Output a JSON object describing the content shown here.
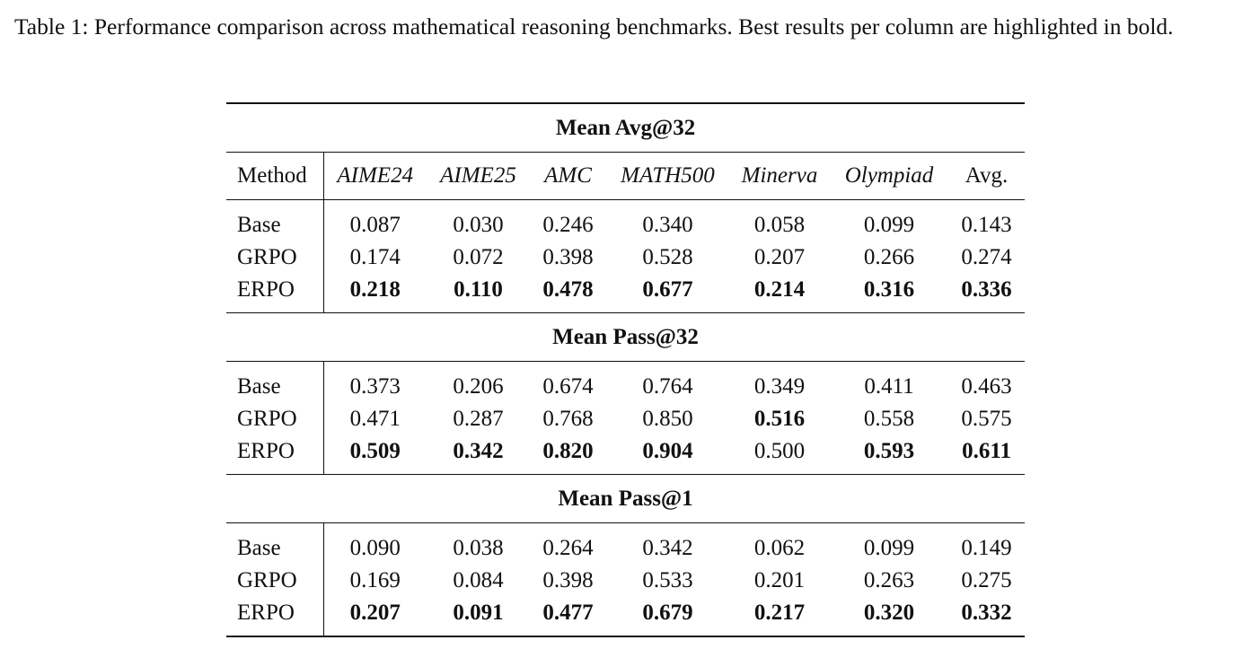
{
  "caption": "Table 1: Performance comparison across mathematical reasoning benchmarks. Best results per column are highlighted in bold.",
  "columns": [
    "Method",
    "AIME24",
    "AIME25",
    "AMC",
    "MATH500",
    "Minerva",
    "Olympiad",
    "Avg."
  ],
  "groups": [
    {
      "title": "Mean Avg@32",
      "rows": [
        {
          "method": "Base",
          "values": [
            "0.087",
            "0.030",
            "0.246",
            "0.340",
            "0.058",
            "0.099",
            "0.143"
          ],
          "bold": [
            false,
            false,
            false,
            false,
            false,
            false,
            false
          ]
        },
        {
          "method": "GRPO",
          "values": [
            "0.174",
            "0.072",
            "0.398",
            "0.528",
            "0.207",
            "0.266",
            "0.274"
          ],
          "bold": [
            false,
            false,
            false,
            false,
            false,
            false,
            false
          ]
        },
        {
          "method": "ERPO",
          "values": [
            "0.218",
            "0.110",
            "0.478",
            "0.677",
            "0.214",
            "0.316",
            "0.336"
          ],
          "bold": [
            true,
            true,
            true,
            true,
            true,
            true,
            true
          ]
        }
      ]
    },
    {
      "title": "Mean Pass@32",
      "rows": [
        {
          "method": "Base",
          "values": [
            "0.373",
            "0.206",
            "0.674",
            "0.764",
            "0.349",
            "0.411",
            "0.463"
          ],
          "bold": [
            false,
            false,
            false,
            false,
            false,
            false,
            false
          ]
        },
        {
          "method": "GRPO",
          "values": [
            "0.471",
            "0.287",
            "0.768",
            "0.850",
            "0.516",
            "0.558",
            "0.575"
          ],
          "bold": [
            false,
            false,
            false,
            false,
            true,
            false,
            false
          ]
        },
        {
          "method": "ERPO",
          "values": [
            "0.509",
            "0.342",
            "0.820",
            "0.904",
            "0.500",
            "0.593",
            "0.611"
          ],
          "bold": [
            true,
            true,
            true,
            true,
            false,
            true,
            true
          ]
        }
      ]
    },
    {
      "title": "Mean Pass@1",
      "rows": [
        {
          "method": "Base",
          "values": [
            "0.090",
            "0.038",
            "0.264",
            "0.342",
            "0.062",
            "0.099",
            "0.149"
          ],
          "bold": [
            false,
            false,
            false,
            false,
            false,
            false,
            false
          ]
        },
        {
          "method": "GRPO",
          "values": [
            "0.169",
            "0.084",
            "0.398",
            "0.533",
            "0.201",
            "0.263",
            "0.275"
          ],
          "bold": [
            false,
            false,
            false,
            false,
            false,
            false,
            false
          ]
        },
        {
          "method": "ERPO",
          "values": [
            "0.207",
            "0.091",
            "0.477",
            "0.679",
            "0.217",
            "0.320",
            "0.332"
          ],
          "bold": [
            true,
            true,
            true,
            true,
            true,
            true,
            true
          ]
        }
      ]
    }
  ]
}
